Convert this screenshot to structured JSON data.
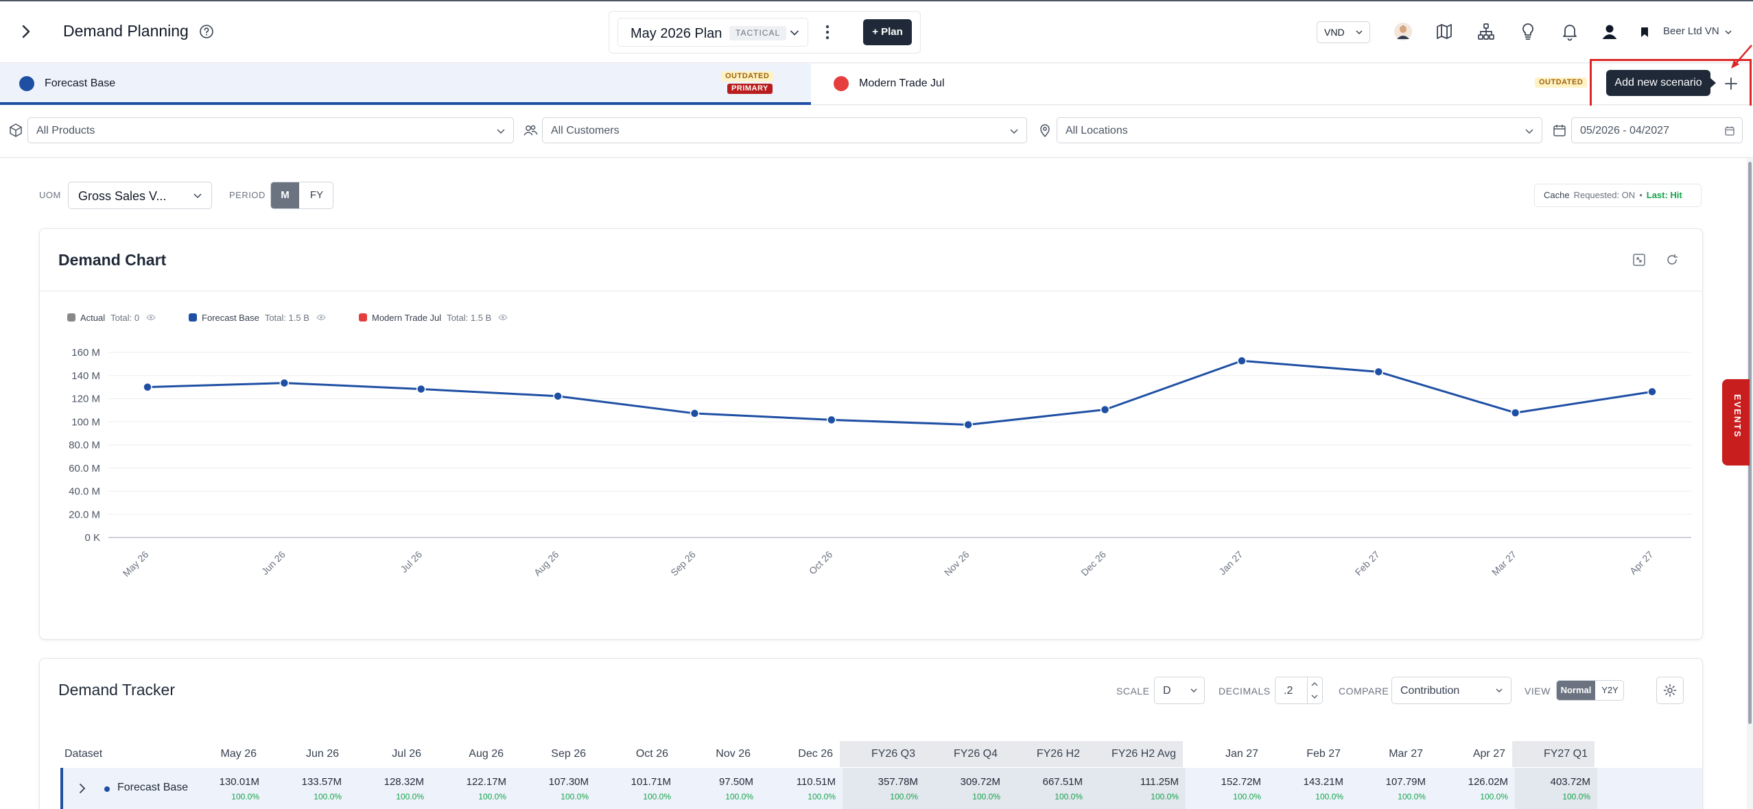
{
  "header": {
    "title": "Demand Planning",
    "plan": {
      "name": "May 2026 Plan",
      "badge": "TACTICAL",
      "add_label": "+ Plan"
    },
    "currency": "VND",
    "company": "Beer Ltd VN"
  },
  "scenarios": [
    {
      "name": "Forecast Base",
      "color": "#1e4fa3",
      "badges": [
        "OUTDATED",
        "PRIMARY"
      ],
      "active": true
    },
    {
      "name": "Modern Trade Jul",
      "color": "#e53e3e",
      "badges": [
        "OUTDATED"
      ],
      "active": false
    }
  ],
  "tooltip": "Add new scenario",
  "filters": {
    "products": "All Products",
    "customers": "All Customers",
    "locations": "All Locations",
    "date_range": "05/2026 - 04/2027"
  },
  "controls": {
    "uom_label": "UOM",
    "uom_value": "Gross Sales V...",
    "period_label": "PERIOD",
    "period_m": "M",
    "period_fy": "FY"
  },
  "cache": {
    "label": "Cache",
    "requested": "Requested: ON",
    "last": "Last: Hit"
  },
  "chart": {
    "title": "Demand Chart",
    "legend": [
      {
        "name": "Actual",
        "total": "Total: 0",
        "color": "#888888"
      },
      {
        "name": "Forecast Base",
        "total": "Total: 1.5 B",
        "color": "#1e4fa3"
      },
      {
        "name": "Modern Trade Jul",
        "total": "Total: 1.5 B",
        "color": "#e53e3e"
      }
    ]
  },
  "chart_data": {
    "type": "line",
    "categories": [
      "May 26",
      "Jun 26",
      "Jul 26",
      "Aug 26",
      "Sep 26",
      "Oct 26",
      "Nov 26",
      "Dec 26",
      "Jan 27",
      "Feb 27",
      "Mar 27",
      "Apr 27"
    ],
    "series": [
      {
        "name": "Forecast Base",
        "color": "#1e4fa3",
        "values": [
          130.01,
          133.57,
          128.32,
          122.17,
          107.3,
          101.71,
          97.5,
          110.51,
          152.72,
          143.21,
          107.79,
          126.02
        ]
      }
    ],
    "y_ticks": [
      "0 K",
      "20.0 M",
      "40.0 M",
      "60.0 M",
      "80.0 M",
      "100 M",
      "120 M",
      "140 M",
      "160 M"
    ],
    "ylim": [
      0,
      160
    ],
    "grid": true,
    "legend_position": "top-left"
  },
  "tracker": {
    "title": "Demand Tracker",
    "scale_label": "SCALE",
    "scale_value": "D",
    "decimals_label": "DECIMALS",
    "decimals_value": ".2",
    "compare_label": "COMPARE",
    "compare_value": "Contribution",
    "view_label": "VIEW",
    "view_normal": "Normal",
    "view_y2y": "Y2Y",
    "dataset_header": "Dataset",
    "columns": [
      "May 26",
      "Jun 26",
      "Jul 26",
      "Aug 26",
      "Sep 26",
      "Oct 26",
      "Nov 26",
      "Dec 26",
      "FY26 Q3",
      "FY26 Q4",
      "FY26 H2",
      "FY26 H2 Avg",
      "Jan 27",
      "Feb 27",
      "Mar 27",
      "Apr 27",
      "FY27 Q1"
    ],
    "agg_columns": [
      8,
      9,
      10,
      11,
      16
    ],
    "rows": [
      {
        "name": "Forecast Base",
        "values": [
          "130.01M",
          "133.57M",
          "128.32M",
          "122.17M",
          "107.30M",
          "101.71M",
          "97.50M",
          "110.51M",
          "357.78M",
          "309.72M",
          "667.51M",
          "111.25M",
          "152.72M",
          "143.21M",
          "107.79M",
          "126.02M",
          "403.72M"
        ],
        "pct": [
          "100.0%",
          "100.0%",
          "100.0%",
          "100.0%",
          "100.0%",
          "100.0%",
          "100.0%",
          "100.0%",
          "100.0%",
          "100.0%",
          "100.0%",
          "100.0%",
          "100.0%",
          "100.0%",
          "100.0%",
          "100.0%",
          "100.0%"
        ]
      }
    ]
  },
  "events_label": "EVENTS"
}
